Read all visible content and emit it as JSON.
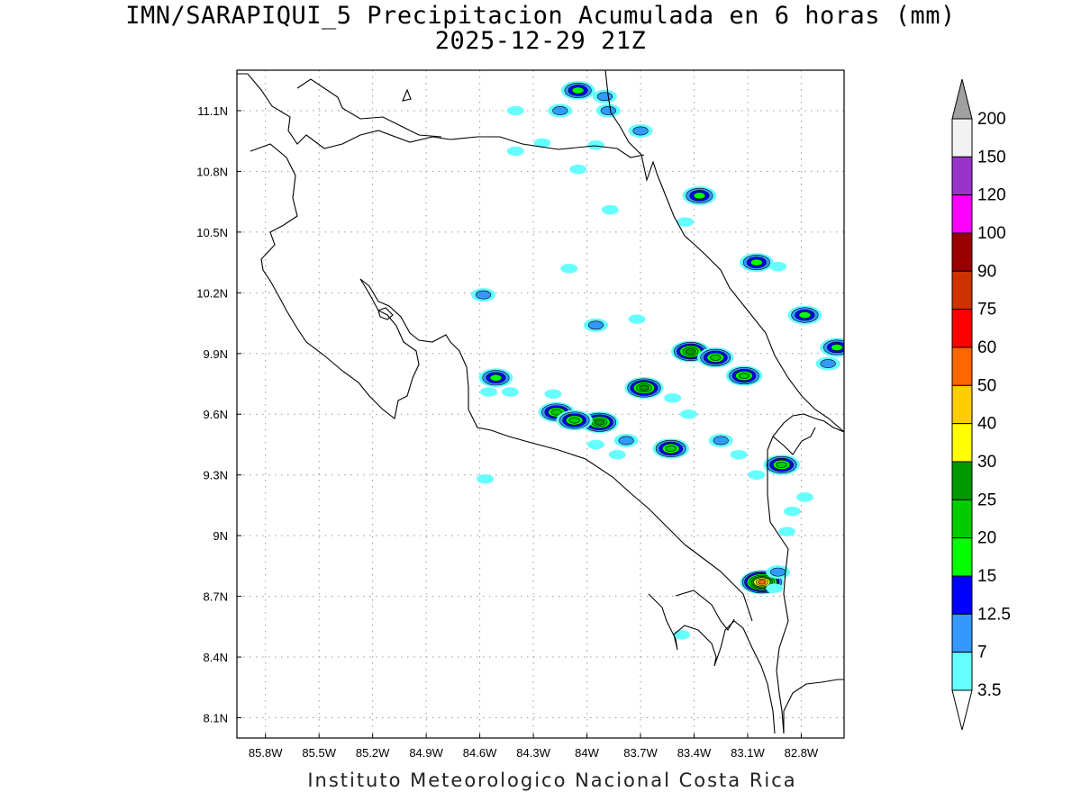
{
  "title_line1": "IMN/SARAPIQUI_5 Precipitacion Acumulada en 6 horas (mm)",
  "title_line2": "2025-12-29 21Z",
  "credit": "Instituto Meteorologico Nacional Costa Rica",
  "map": {
    "lon_ticks": [
      "85.8W",
      "85.5W",
      "85.2W",
      "84.9W",
      "84.6W",
      "84.3W",
      "84W",
      "83.7W",
      "83.4W",
      "83.1W",
      "82.8W"
    ],
    "lat_ticks": [
      "11.1N",
      "10.8N",
      "10.5N",
      "10.2N",
      "9.9N",
      "9.6N",
      "9.3N",
      "9N",
      "8.7N",
      "8.4N",
      "8.1N"
    ],
    "extent": {
      "lon_min": -85.96,
      "lon_max": -82.56,
      "lat_min": 8.0,
      "lat_max": 11.3
    },
    "gridlines": "dotted"
  },
  "legend": {
    "labels": [
      "200",
      "150",
      "120",
      "100",
      "90",
      "75",
      "60",
      "50",
      "40",
      "30",
      "25",
      "20",
      "15",
      "12.5",
      "7",
      "3.5"
    ],
    "colors": [
      "#f2f2f2",
      "#9933cc",
      "#ff00ff",
      "#990000",
      "#cc3300",
      "#ff0000",
      "#ff6600",
      "#ffcc00",
      "#ffff00",
      "#009900",
      "#00cc00",
      "#00ff00",
      "#0000ff",
      "#3399ff",
      "#66ffff"
    ],
    "over_color": "#a0a0a0",
    "under_color": "#ffffff"
  },
  "precip_cells": [
    {
      "lon": -84.05,
      "lat": 11.2,
      "level": 4
    },
    {
      "lon": -83.9,
      "lat": 11.17,
      "level": 2
    },
    {
      "lon": -83.88,
      "lat": 11.1,
      "level": 2
    },
    {
      "lon": -83.7,
      "lat": 11.0,
      "level": 2
    },
    {
      "lon": -84.15,
      "lat": 11.1,
      "level": 2
    },
    {
      "lon": -84.25,
      "lat": 10.94,
      "level": 1
    },
    {
      "lon": -84.4,
      "lat": 10.9,
      "level": 1
    },
    {
      "lon": -84.05,
      "lat": 10.81,
      "level": 1
    },
    {
      "lon": -83.95,
      "lat": 10.93,
      "level": 1
    },
    {
      "lon": -84.4,
      "lat": 11.1,
      "level": 1
    },
    {
      "lon": -83.87,
      "lat": 10.61,
      "level": 1
    },
    {
      "lon": -83.37,
      "lat": 10.68,
      "level": 4
    },
    {
      "lon": -83.45,
      "lat": 10.55,
      "level": 1
    },
    {
      "lon": -83.05,
      "lat": 10.35,
      "level": 4
    },
    {
      "lon": -82.93,
      "lat": 10.33,
      "level": 1
    },
    {
      "lon": -82.78,
      "lat": 10.09,
      "level": 4
    },
    {
      "lon": -82.6,
      "lat": 9.93,
      "level": 4
    },
    {
      "lon": -82.65,
      "lat": 9.85,
      "level": 2
    },
    {
      "lon": -84.58,
      "lat": 10.19,
      "level": 2
    },
    {
      "lon": -84.1,
      "lat": 10.32,
      "level": 1
    },
    {
      "lon": -83.95,
      "lat": 10.04,
      "level": 2
    },
    {
      "lon": -83.42,
      "lat": 9.91,
      "level": 6
    },
    {
      "lon": -83.28,
      "lat": 9.88,
      "level": 5
    },
    {
      "lon": -83.12,
      "lat": 9.79,
      "level": 5
    },
    {
      "lon": -83.68,
      "lat": 9.73,
      "level": 6
    },
    {
      "lon": -83.93,
      "lat": 9.56,
      "level": 6
    },
    {
      "lon": -84.17,
      "lat": 9.61,
      "level": 5
    },
    {
      "lon": -84.07,
      "lat": 9.57,
      "level": 5
    },
    {
      "lon": -83.53,
      "lat": 9.43,
      "level": 5
    },
    {
      "lon": -82.91,
      "lat": 9.35,
      "level": 5
    },
    {
      "lon": -83.02,
      "lat": 8.77,
      "level": 9
    },
    {
      "lon": -82.93,
      "lat": 8.82,
      "level": 2
    },
    {
      "lon": -84.51,
      "lat": 9.78,
      "level": 4
    },
    {
      "lon": -84.55,
      "lat": 9.71,
      "level": 1
    },
    {
      "lon": -84.43,
      "lat": 9.71,
      "level": 1
    },
    {
      "lon": -84.19,
      "lat": 9.7,
      "level": 1
    },
    {
      "lon": -83.78,
      "lat": 9.47,
      "level": 2
    },
    {
      "lon": -83.83,
      "lat": 9.4,
      "level": 1
    },
    {
      "lon": -83.52,
      "lat": 9.68,
      "level": 1
    },
    {
      "lon": -83.25,
      "lat": 9.47,
      "level": 2
    },
    {
      "lon": -83.15,
      "lat": 9.4,
      "level": 1
    },
    {
      "lon": -83.05,
      "lat": 9.3,
      "level": 1
    },
    {
      "lon": -82.85,
      "lat": 9.12,
      "level": 1
    },
    {
      "lon": -82.78,
      "lat": 9.19,
      "level": 1
    },
    {
      "lon": -83.95,
      "lat": 9.45,
      "level": 1
    },
    {
      "lon": -84.57,
      "lat": 9.28,
      "level": 1
    },
    {
      "lon": -83.43,
      "lat": 9.6,
      "level": 1
    },
    {
      "lon": -83.72,
      "lat": 10.07,
      "level": 1
    },
    {
      "lon": -82.88,
      "lat": 9.02,
      "level": 1
    },
    {
      "lon": -83.47,
      "lat": 8.51,
      "level": 1
    },
    {
      "lon": -82.95,
      "lat": 8.74,
      "level": 1
    }
  ]
}
